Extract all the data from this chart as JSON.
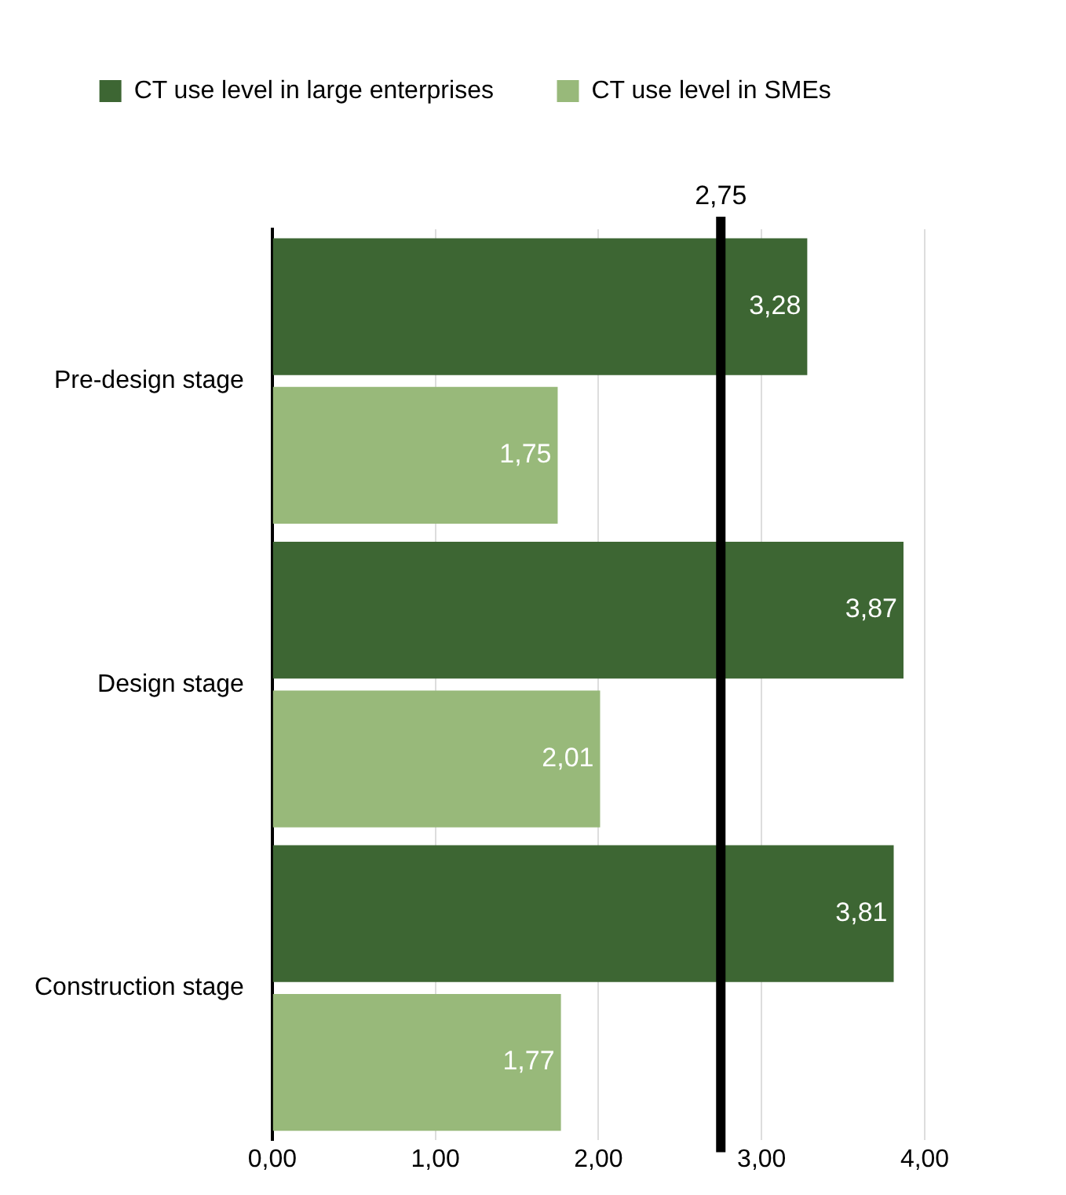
{
  "chart_data": {
    "type": "bar",
    "orientation": "horizontal",
    "categories": [
      "Pre-design stage",
      "Design stage",
      "Construction stage"
    ],
    "series": [
      {
        "name": "CT use level in large enterprises",
        "color": "#3d6633",
        "values": [
          3.28,
          3.87,
          3.81
        ],
        "value_labels": [
          "3,28",
          "3,87",
          "3,81"
        ]
      },
      {
        "name": "CT use level in SMEs",
        "color": "#98b97a",
        "values": [
          1.75,
          2.01,
          1.77
        ],
        "value_labels": [
          "1,75",
          "2,01",
          "1,77"
        ]
      }
    ],
    "xlim": [
      0,
      4
    ],
    "xticks": [
      {
        "value": 0,
        "label": "0,00"
      },
      {
        "value": 1,
        "label": "1,00"
      },
      {
        "value": 2,
        "label": "2,00"
      },
      {
        "value": 3,
        "label": "3,00"
      },
      {
        "value": 4,
        "label": "4,00"
      }
    ],
    "grid": "x",
    "legend": "top",
    "ref_lines": [
      {
        "axis": "x",
        "value": 2.75,
        "label": "2,75",
        "color": "#000000"
      }
    ]
  }
}
